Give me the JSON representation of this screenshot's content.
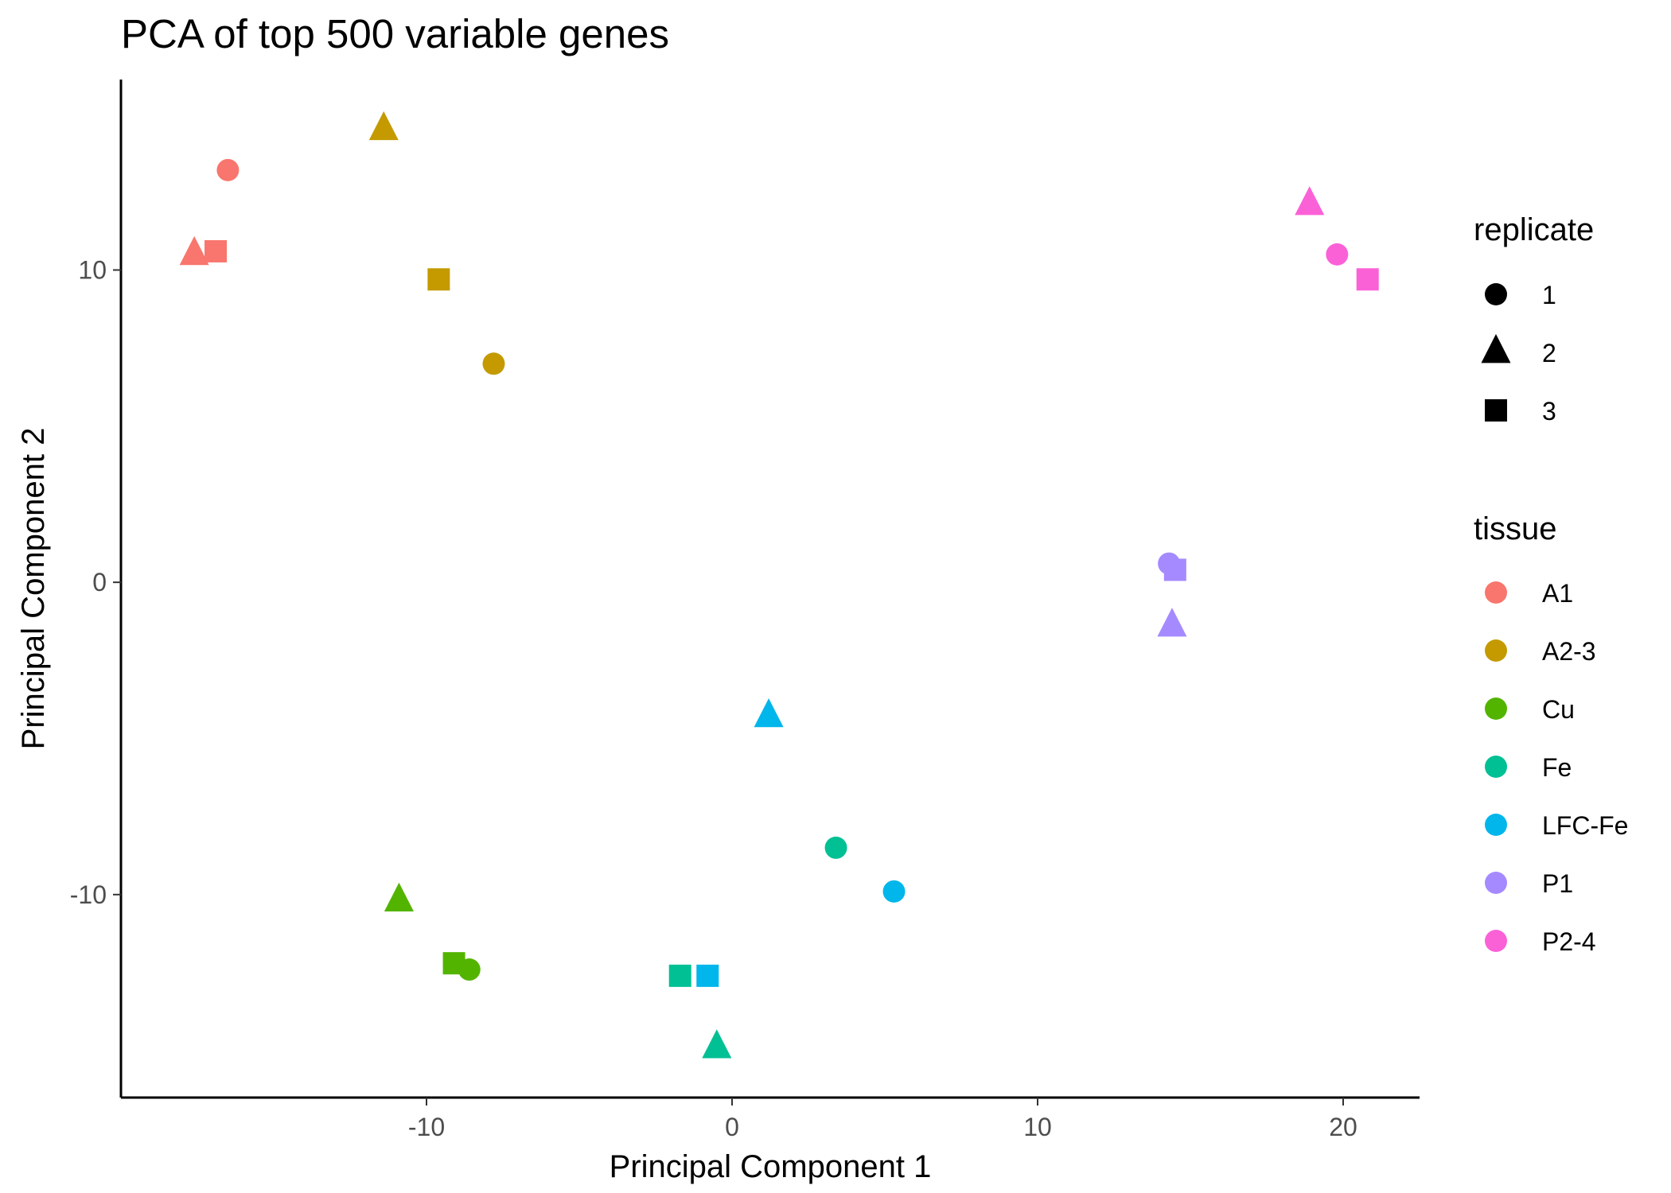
{
  "chart_data": {
    "type": "scatter",
    "title": "PCA of top 500 variable genes",
    "xlabel": "Principal Component 1",
    "ylabel": "Principal Component 2",
    "xlim": [
      -20,
      22.5
    ],
    "ylim": [
      -16.5,
      16.1
    ],
    "xticks": [
      -10,
      0,
      10,
      20
    ],
    "yticks": [
      -10,
      0,
      10
    ],
    "grid": false,
    "legend_position": "right",
    "legends": {
      "shape": {
        "title": "replicate",
        "items": [
          {
            "label": "1",
            "shape": "circle"
          },
          {
            "label": "2",
            "shape": "triangle"
          },
          {
            "label": "3",
            "shape": "square"
          }
        ]
      },
      "color": {
        "title": "tissue",
        "items": [
          {
            "label": "A1",
            "color": "#F8766D"
          },
          {
            "label": "A2-3",
            "color": "#C49A00"
          },
          {
            "label": "Cu",
            "color": "#53B400"
          },
          {
            "label": "Fe",
            "color": "#00C094"
          },
          {
            "label": "LFC-Fe",
            "color": "#00B6EB"
          },
          {
            "label": "P1",
            "color": "#A58AFF"
          },
          {
            "label": "P2-4",
            "color": "#FB61D7"
          }
        ]
      }
    },
    "points": [
      {
        "tissue": "A1",
        "replicate": "1",
        "x": -16.5,
        "y": 13.2
      },
      {
        "tissue": "A1",
        "replicate": "2",
        "x": -17.6,
        "y": 10.5
      },
      {
        "tissue": "A1",
        "replicate": "3",
        "x": -16.9,
        "y": 10.6
      },
      {
        "tissue": "A2-3",
        "replicate": "1",
        "x": -7.8,
        "y": 7.0
      },
      {
        "tissue": "A2-3",
        "replicate": "2",
        "x": -11.4,
        "y": 14.5
      },
      {
        "tissue": "A2-3",
        "replicate": "3",
        "x": -9.6,
        "y": 9.7
      },
      {
        "tissue": "Cu",
        "replicate": "1",
        "x": -8.6,
        "y": -12.4
      },
      {
        "tissue": "Cu",
        "replicate": "2",
        "x": -10.9,
        "y": -10.2
      },
      {
        "tissue": "Cu",
        "replicate": "3",
        "x": -9.1,
        "y": -12.2
      },
      {
        "tissue": "Fe",
        "replicate": "1",
        "x": 3.4,
        "y": -8.5
      },
      {
        "tissue": "Fe",
        "replicate": "2",
        "x": -0.5,
        "y": -14.9
      },
      {
        "tissue": "Fe",
        "replicate": "3",
        "x": -1.7,
        "y": -12.6
      },
      {
        "tissue": "LFC-Fe",
        "replicate": "1",
        "x": 5.3,
        "y": -9.9
      },
      {
        "tissue": "LFC-Fe",
        "replicate": "2",
        "x": 1.2,
        "y": -4.3
      },
      {
        "tissue": "LFC-Fe",
        "replicate": "3",
        "x": -0.8,
        "y": -12.6
      },
      {
        "tissue": "P1",
        "replicate": "1",
        "x": 14.3,
        "y": 0.6
      },
      {
        "tissue": "P1",
        "replicate": "2",
        "x": 14.4,
        "y": -1.4
      },
      {
        "tissue": "P1",
        "replicate": "3",
        "x": 14.5,
        "y": 0.4
      },
      {
        "tissue": "P2-4",
        "replicate": "1",
        "x": 19.8,
        "y": 10.5
      },
      {
        "tissue": "P2-4",
        "replicate": "2",
        "x": 18.9,
        "y": 12.1
      },
      {
        "tissue": "P2-4",
        "replicate": "3",
        "x": 20.8,
        "y": 9.7
      }
    ]
  }
}
